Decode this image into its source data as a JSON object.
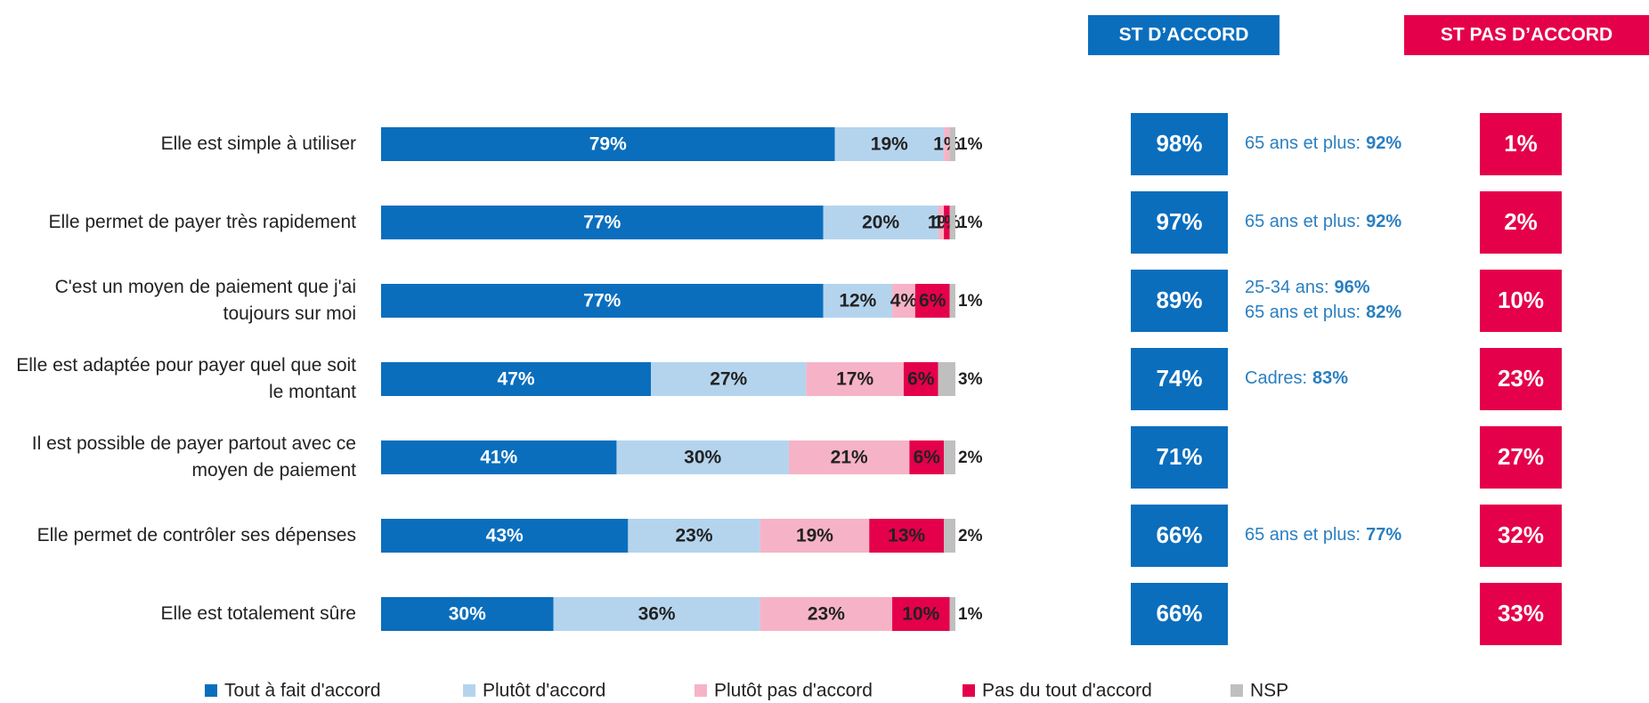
{
  "chart_data": {
    "type": "bar",
    "orientation": "horizontal",
    "stacked": true,
    "categories": [
      "Elle est simple à utiliser",
      "Elle permet de payer très rapidement",
      "C'est un moyen de paiement que j'ai toujours sur moi",
      "Elle est adaptée pour payer quel que soit le montant",
      "Il est possible de payer partout avec ce moyen de paiement",
      "Elle permet de contrôler ses dépenses",
      "Elle est totalement sûre"
    ],
    "xlim": [
      0,
      100
    ],
    "series": [
      {
        "name": "Tout à fait d'accord",
        "color": "#0a6ebd",
        "values": [
          79,
          77,
          77,
          47,
          41,
          43,
          30
        ],
        "value_labels": [
          "79%",
          "77%",
          "77%",
          "47%",
          "41%",
          "43%",
          "30%"
        ]
      },
      {
        "name": "Plutôt d'accord",
        "color": "#b4d4ee",
        "values": [
          19,
          20,
          12,
          27,
          30,
          23,
          36
        ],
        "value_labels": [
          "19%",
          "20%",
          "12%",
          "27%",
          "30%",
          "23%",
          "36%"
        ]
      },
      {
        "name": "Plutôt pas d'accord",
        "color": "#f6b3c7",
        "values": [
          1,
          1,
          4,
          17,
          21,
          19,
          23
        ],
        "value_labels": [
          "1%",
          "1%",
          "4%",
          "17%",
          "21%",
          "19%",
          "23%"
        ]
      },
      {
        "name": "Pas du tout d'accord",
        "color": "#e4004b",
        "values": [
          0,
          1,
          6,
          6,
          6,
          13,
          10
        ],
        "value_labels": [
          null,
          "1%",
          "6%",
          "6%",
          "6%",
          "13%",
          "10%"
        ]
      },
      {
        "name": "NSP",
        "color": "#bfbfbf",
        "values": [
          1,
          1,
          1,
          3,
          2,
          2,
          1
        ],
        "value_labels": [
          "1%",
          "1%",
          "1%",
          "3%",
          "2%",
          "2%",
          "1%"
        ]
      }
    ],
    "st_accord": {
      "title": "ST D’ACCORD",
      "color": "#0a6ebd",
      "values": [
        98,
        97,
        89,
        74,
        71,
        66,
        66
      ],
      "value_labels": [
        "98%",
        "97%",
        "89%",
        "74%",
        "71%",
        "66%",
        "66%"
      ]
    },
    "st_pas_accord": {
      "title": "ST PAS D’ACCORD",
      "color": "#e4004b",
      "values": [
        1,
        2,
        10,
        23,
        27,
        32,
        33
      ],
      "value_labels": [
        "1%",
        "2%",
        "10%",
        "23%",
        "27%",
        "32%",
        "33%"
      ]
    },
    "notes": [
      [
        {
          "label": "65 ans et plus:",
          "value": "92%"
        }
      ],
      [
        {
          "label": "65 ans et plus:",
          "value": "92%"
        }
      ],
      [
        {
          "label": "25-34 ans:",
          "value": "96%"
        },
        {
          "label": "65 ans et plus:",
          "value": "82%"
        }
      ],
      [
        {
          "label": "Cadres:",
          "value": "83%"
        }
      ],
      [],
      [
        {
          "label": "65 ans et plus:",
          "value": "77%"
        }
      ],
      []
    ]
  }
}
